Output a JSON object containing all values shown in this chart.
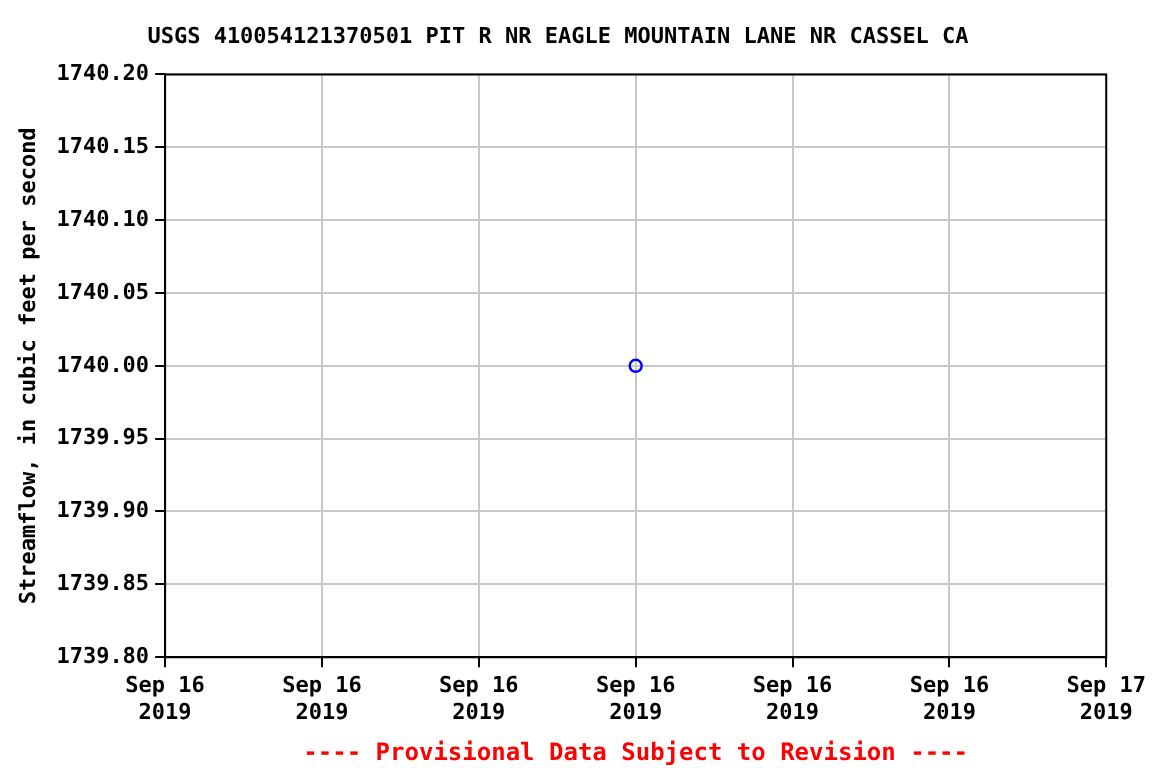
{
  "chart_data": {
    "type": "scatter",
    "title": "USGS 410054121370501 PIT R NR EAGLE MOUNTAIN LANE NR CASSEL CA",
    "ylabel": "Streamflow, in cubic feet per second",
    "annotations": [
      "---- Provisional Data Subject to Revision ----"
    ],
    "series": [
      {
        "color": "#0000ff",
        "x": [
          "2019-09-16T12:00"
        ],
        "values": [
          1740.0
        ]
      }
    ],
    "xlim": [
      "2019-09-16T00:00",
      "2019-09-17T00:00"
    ],
    "xticks": [
      {
        "value": "2019-09-16T00:00",
        "label": "Sep 16\n2019"
      },
      {
        "value": "2019-09-16T04:00",
        "label": "Sep 16\n2019"
      },
      {
        "value": "2019-09-16T08:00",
        "label": "Sep 16\n2019"
      },
      {
        "value": "2019-09-16T12:00",
        "label": "Sep 16\n2019"
      },
      {
        "value": "2019-09-16T16:00",
        "label": "Sep 16\n2019"
      },
      {
        "value": "2019-09-16T20:00",
        "label": "Sep 16\n2019"
      },
      {
        "value": "2019-09-17T00:00",
        "label": "Sep 17\n2019"
      }
    ],
    "ylim": [
      1739.8,
      1740.2
    ],
    "yticks": [
      {
        "value": 1739.8,
        "label": "1739.80"
      },
      {
        "value": 1739.85,
        "label": "1739.85"
      },
      {
        "value": 1739.9,
        "label": "1739.90"
      },
      {
        "value": 1739.95,
        "label": "1739.95"
      },
      {
        "value": 1740.0,
        "label": "1740.00"
      },
      {
        "value": 1740.05,
        "label": "1740.05"
      },
      {
        "value": 1740.1,
        "label": "1740.10"
      },
      {
        "value": 1740.15,
        "label": "1740.15"
      },
      {
        "value": 1740.2,
        "label": "1740.20"
      }
    ],
    "grid": true,
    "marker": "circle",
    "legend": false
  }
}
